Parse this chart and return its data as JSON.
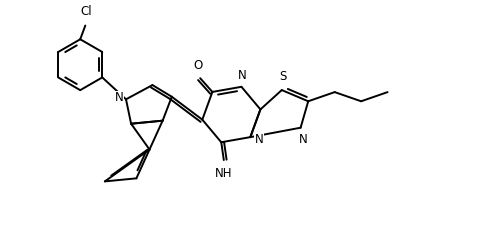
{
  "figsize": [
    4.86,
    2.36
  ],
  "dpi": 100,
  "bg": "#ffffff",
  "lc": "#000000",
  "lw": 1.4,
  "fs": 8.5,
  "xlim": [
    0,
    9.5
  ],
  "ylim": [
    0,
    4.5
  ]
}
